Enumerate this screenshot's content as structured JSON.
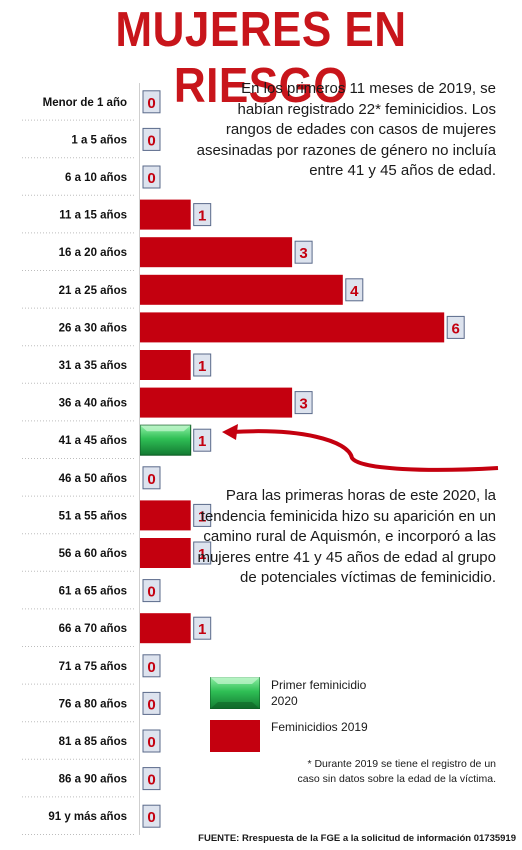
{
  "title": "MUJERES EN RIESGO",
  "intro_text": "En los primeros 11 meses de 2019, se habían registrado 22* feminicidios. Los rangos de edades con casos de mujeres asesinadas por razones de género no incluía entre 41 y 45 años de edad.",
  "callout_text": "Para las primeras horas de este 2020, la tendencia feminicida hizo su aparición en un camino rural de Aquismón, e incorporó a las mujeres entre 41 y 45 años de edad al grupo de potenciales víctimas de feminicidio.",
  "legend": {
    "item_2020": "Primer feminicidio 2020",
    "item_2019": "Feminicidios 2019"
  },
  "footnote": "* Durante 2019 se tiene el registro de un caso sin datos sobre la edad de la víctima.",
  "source": "FUENTE: Rrespuesta de la FGE a la solicitud de información 01735919",
  "colors": {
    "title": "#c8151b",
    "bar_2019": "#c4000f",
    "bar_2020": "#2eb84e",
    "label_box": "#dde3ee",
    "arrow": "#c4000f"
  },
  "chart_data": {
    "type": "bar",
    "orientation": "horizontal",
    "categories": [
      "Menor de 1  año",
      "1 a 5  años",
      "6 a 10  años",
      "11 a 15  años",
      "16 a 20  años",
      "21 a 25  años",
      "26 a 30  años",
      "31 a 35  años",
      "36 a 40  años",
      "41 a 45  años",
      "46 a 50  años",
      "51 a 55  años",
      "56 a 60  años",
      "61 a 65  años",
      "66 a 70  años",
      "71 a 75  años",
      "76 a 80  años",
      "81 a 85  años",
      "86 a 90  años",
      "91 y más  años"
    ],
    "values": [
      0,
      0,
      0,
      1,
      3,
      4,
      6,
      1,
      3,
      1,
      0,
      1,
      1,
      0,
      1,
      0,
      0,
      0,
      0,
      0
    ],
    "series_year": [
      2019,
      2019,
      2019,
      2019,
      2019,
      2019,
      2019,
      2019,
      2019,
      2020,
      2019,
      2019,
      2019,
      2019,
      2019,
      2019,
      2019,
      2019,
      2019,
      2019
    ],
    "xlim": [
      0,
      6
    ],
    "grid": false
  }
}
